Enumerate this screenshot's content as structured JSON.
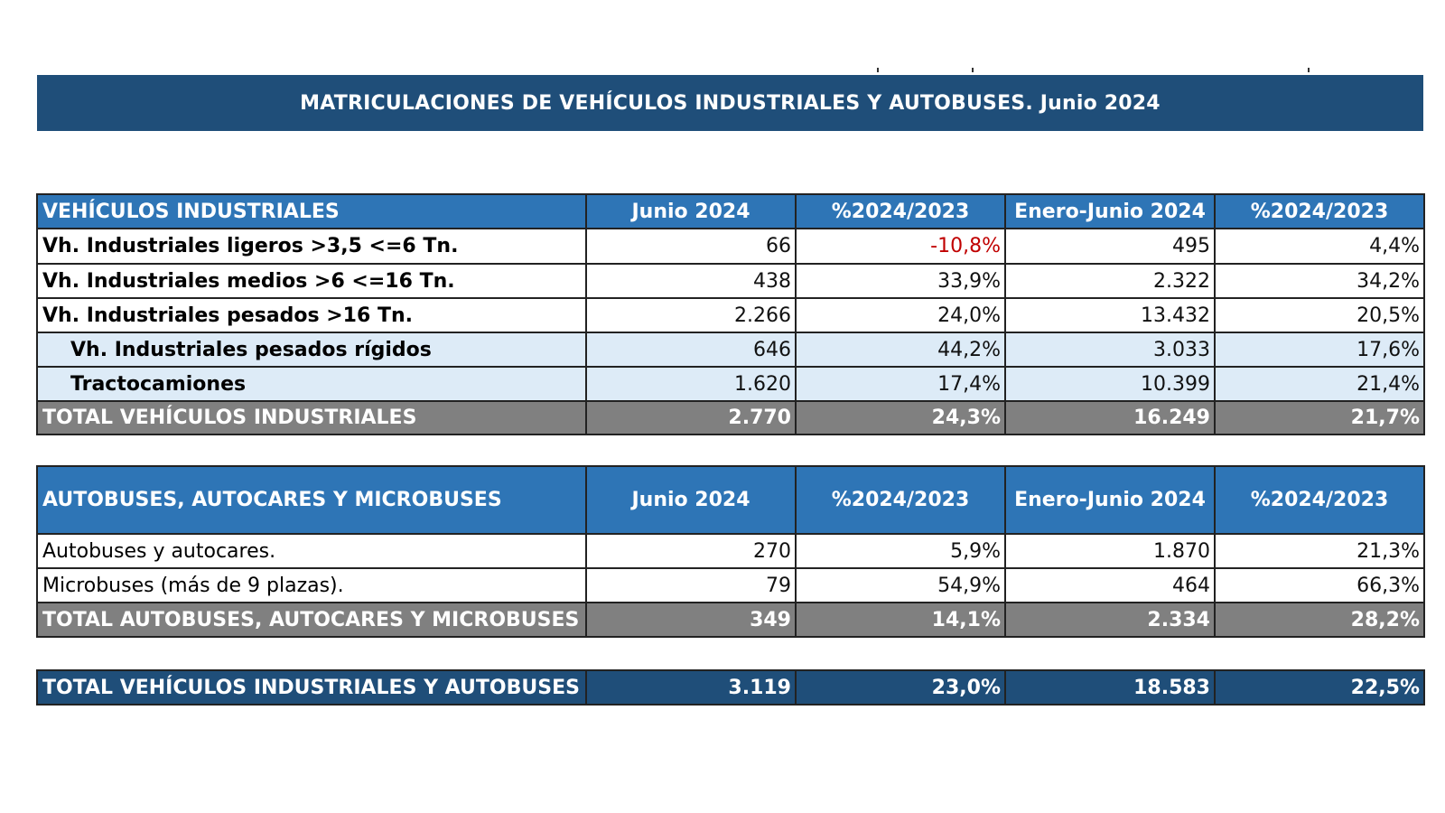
{
  "title": "MATRICULACIONES DE VEHÍCULOS INDUSTRIALES Y AUTOBUSES.  Junio 2024",
  "industrial": {
    "headers": [
      "VEHÍCULOS INDUSTRIALES",
      "Junio 2024",
      "%2024/2023",
      "Enero-Junio 2024",
      "%2024/2023"
    ],
    "rows": [
      {
        "label": "Vh. Industriales ligeros >3,5 <=6 Tn.",
        "junio": "66",
        "pct_junio": "-10,8%",
        "acum": "495",
        "pct_acum": "4,4%"
      },
      {
        "label": "Vh. Industriales medios >6  <=16 Tn.",
        "junio": "438",
        "pct_junio": "33,9%",
        "acum": "2.322",
        "pct_acum": "34,2%"
      },
      {
        "label": "Vh. Industriales  pesados >16 Tn.",
        "junio": "2.266",
        "pct_junio": "24,0%",
        "acum": "13.432",
        "pct_acum": "20,5%"
      },
      {
        "label": "Vh. Industriales pesados rígidos",
        "junio": "646",
        "pct_junio": "44,2%",
        "acum": "3.033",
        "pct_acum": "17,6%"
      },
      {
        "label": "Tractocamiones",
        "junio": "1.620",
        "pct_junio": "17,4%",
        "acum": "10.399",
        "pct_acum": "21,4%"
      }
    ],
    "total": {
      "label": "TOTAL VEHÍCULOS INDUSTRIALES",
      "junio": "2.770",
      "pct_junio": "24,3%",
      "acum": "16.249",
      "pct_acum": "21,7%"
    }
  },
  "buses": {
    "headers": [
      "AUTOBUSES, AUTOCARES Y MICROBUSES",
      "Junio 2024",
      "%2024/2023",
      "Enero-Junio 2024",
      "%2024/2023"
    ],
    "rows": [
      {
        "label": "Autobuses y autocares.",
        "junio": "270",
        "pct_junio": "5,9%",
        "acum": "1.870",
        "pct_acum": "21,3%"
      },
      {
        "label": "Microbuses (más de 9 plazas).",
        "junio": "79",
        "pct_junio": "54,9%",
        "acum": "464",
        "pct_acum": "66,3%"
      }
    ],
    "total": {
      "label": "TOTAL AUTOBUSES, AUTOCARES Y MICROBUSES",
      "junio": "349",
      "pct_junio": "14,1%",
      "acum": "2.334",
      "pct_acum": "28,2%"
    }
  },
  "grand_total": {
    "label": "TOTAL VEHÍCULOS INDUSTRIALES Y AUTOBUSES",
    "junio": "3.119",
    "pct_junio": "23,0%",
    "acum": "18.583",
    "pct_acum": "22,5%"
  },
  "colors": {
    "banner": "#1f4e79",
    "header": "#2e75b6",
    "subrow": "#ddebf7",
    "total": "#808080",
    "negative": "#c00000"
  }
}
